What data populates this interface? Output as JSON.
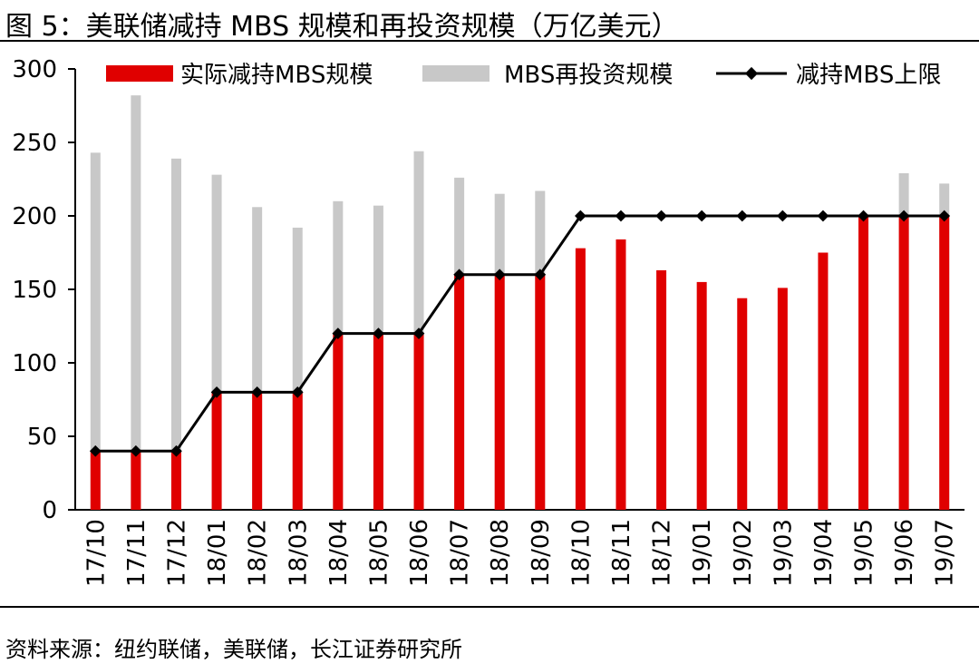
{
  "title": "图 5：美联储减持 MBS 规模和再投资规模（万亿美元）",
  "source": "资料来源：纽约联储，美联储，长江证券研究所",
  "chart_data": {
    "type": "bar",
    "categories": [
      "17/10",
      "17/11",
      "17/12",
      "18/01",
      "18/02",
      "18/03",
      "18/04",
      "18/05",
      "18/06",
      "18/07",
      "18/08",
      "18/09",
      "18/10",
      "18/11",
      "18/12",
      "19/01",
      "19/02",
      "19/03",
      "19/04",
      "19/05",
      "19/06",
      "19/07"
    ],
    "series": [
      {
        "name": "实际减持MBS规模",
        "kind": "bar",
        "color": "#e00000",
        "values": [
          40,
          40,
          40,
          80,
          80,
          80,
          120,
          120,
          120,
          160,
          160,
          160,
          178,
          184,
          163,
          155,
          144,
          151,
          175,
          200,
          200,
          200
        ]
      },
      {
        "name": "MBS再投资规模",
        "kind": "bar",
        "color": "#c8c8c8",
        "values": [
          243,
          282,
          239,
          228,
          206,
          192,
          210,
          207,
          244,
          226,
          215,
          217,
          0,
          0,
          0,
          0,
          0,
          0,
          0,
          0,
          229,
          222
        ]
      },
      {
        "name": "减持MBS上限",
        "kind": "line",
        "color": "#000000",
        "values": [
          40,
          40,
          40,
          80,
          80,
          80,
          120,
          120,
          120,
          160,
          160,
          160,
          200,
          200,
          200,
          200,
          200,
          200,
          200,
          200,
          200,
          200
        ]
      }
    ],
    "ylim": [
      0,
      300
    ],
    "yticks": [
      0,
      50,
      100,
      150,
      200,
      250,
      300
    ],
    "xlabel": "",
    "ylabel": "",
    "legend": "top",
    "grid": false
  }
}
